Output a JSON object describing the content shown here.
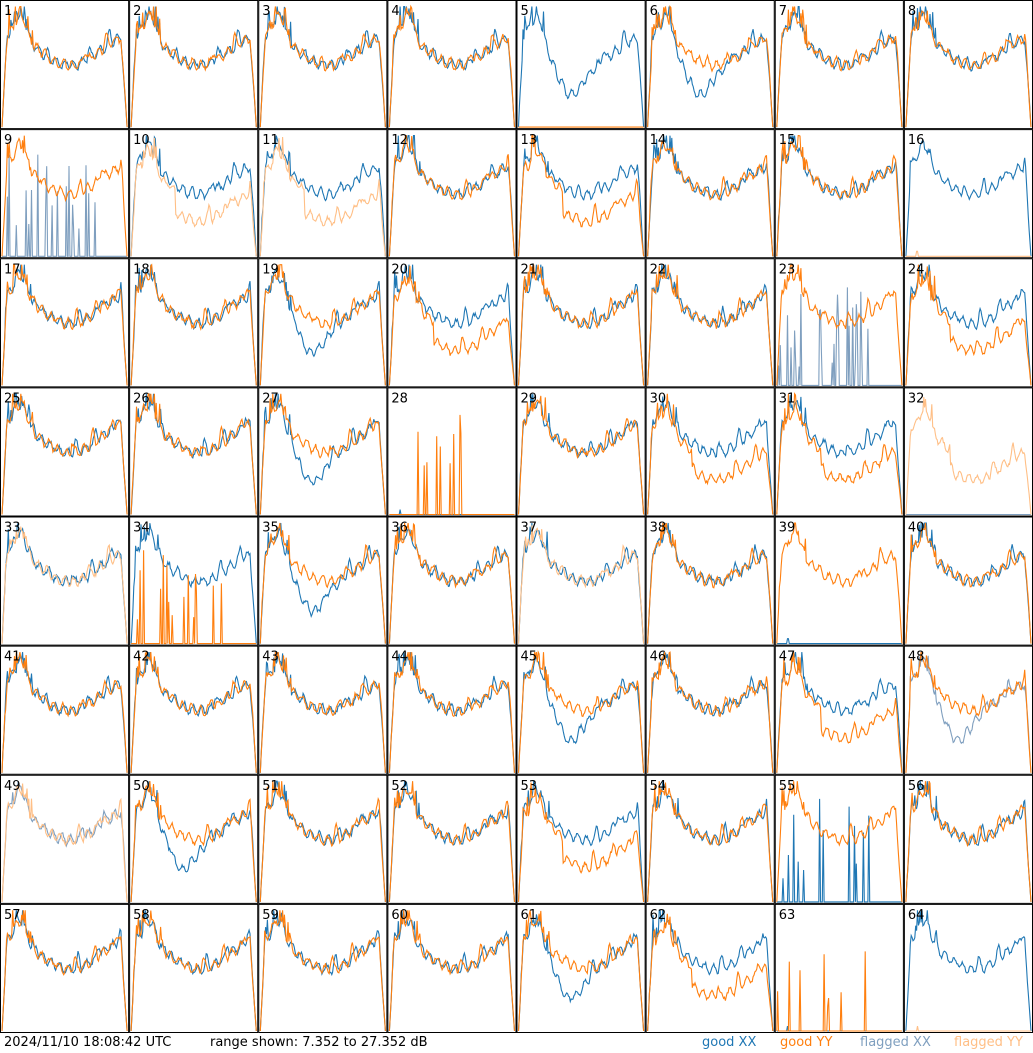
{
  "footer": {
    "timestamp": "2024/11/10 18:08:42 UTC",
    "range_text": "range shown: 7.352 to 27.352 dB"
  },
  "legend": {
    "good_xx": "good XX",
    "good_yy": "good YY",
    "flagged_xx": "flagged XX",
    "flagged_yy": "flagged YY"
  },
  "colors": {
    "good_xx": "#1f77b4",
    "good_yy": "#ff7f0e",
    "flagged_xx": "#7f9fbf",
    "flagged_yy": "#ffbf86"
  },
  "chart_data": {
    "type": "line",
    "title": "",
    "xlabel": "",
    "ylabel": "",
    "ylim": [
      7.352,
      27.352
    ],
    "grid": "8x8 small multiples",
    "series_shapes": [
      "normal",
      "xx_dip",
      "yy_low",
      "dead",
      "spiky"
    ],
    "panels": [
      {
        "id": "1",
        "xx": "normal",
        "yy": "normal",
        "xx_flagged": false,
        "yy_flagged": false
      },
      {
        "id": "2",
        "xx": "normal",
        "yy": "normal",
        "xx_flagged": false,
        "yy_flagged": false
      },
      {
        "id": "3",
        "xx": "normal",
        "yy": "normal",
        "xx_flagged": false,
        "yy_flagged": false
      },
      {
        "id": "4",
        "xx": "normal",
        "yy": "normal",
        "xx_flagged": false,
        "yy_flagged": false
      },
      {
        "id": "5",
        "xx": "xx_dip",
        "yy": "dead",
        "xx_flagged": false,
        "yy_flagged": false
      },
      {
        "id": "6",
        "xx": "xx_dip",
        "yy": "normal",
        "xx_flagged": false,
        "yy_flagged": false
      },
      {
        "id": "7",
        "xx": "normal",
        "yy": "normal",
        "xx_flagged": false,
        "yy_flagged": false
      },
      {
        "id": "8",
        "xx": "normal",
        "yy": "normal",
        "xx_flagged": false,
        "yy_flagged": false
      },
      {
        "id": "9",
        "xx": "spiky",
        "yy": "normal",
        "xx_flagged": true,
        "yy_flagged": false
      },
      {
        "id": "10",
        "xx": "normal",
        "yy": "yy_low",
        "xx_flagged": false,
        "yy_flagged": true
      },
      {
        "id": "11",
        "xx": "normal",
        "yy": "yy_low",
        "xx_flagged": false,
        "yy_flagged": true
      },
      {
        "id": "12",
        "xx": "normal",
        "yy": "normal",
        "xx_flagged": false,
        "yy_flagged": false
      },
      {
        "id": "13",
        "xx": "normal",
        "yy": "yy_low",
        "xx_flagged": false,
        "yy_flagged": false
      },
      {
        "id": "14",
        "xx": "normal",
        "yy": "normal",
        "xx_flagged": false,
        "yy_flagged": false
      },
      {
        "id": "15",
        "xx": "normal",
        "yy": "normal",
        "xx_flagged": false,
        "yy_flagged": false
      },
      {
        "id": "16",
        "xx": "normal",
        "yy": "dead",
        "xx_flagged": false,
        "yy_flagged": true
      },
      {
        "id": "17",
        "xx": "normal",
        "yy": "normal",
        "xx_flagged": false,
        "yy_flagged": false
      },
      {
        "id": "18",
        "xx": "normal",
        "yy": "normal",
        "xx_flagged": false,
        "yy_flagged": false
      },
      {
        "id": "19",
        "xx": "xx_dip",
        "yy": "normal",
        "xx_flagged": false,
        "yy_flagged": false
      },
      {
        "id": "20",
        "xx": "normal",
        "yy": "yy_low",
        "xx_flagged": false,
        "yy_flagged": false
      },
      {
        "id": "21",
        "xx": "normal",
        "yy": "normal",
        "xx_flagged": false,
        "yy_flagged": false
      },
      {
        "id": "22",
        "xx": "normal",
        "yy": "normal",
        "xx_flagged": false,
        "yy_flagged": false
      },
      {
        "id": "23",
        "xx": "spiky",
        "yy": "normal",
        "xx_flagged": true,
        "yy_flagged": false
      },
      {
        "id": "24",
        "xx": "normal",
        "yy": "yy_low",
        "xx_flagged": false,
        "yy_flagged": false
      },
      {
        "id": "25",
        "xx": "normal",
        "yy": "normal",
        "xx_flagged": false,
        "yy_flagged": false
      },
      {
        "id": "26",
        "xx": "normal",
        "yy": "normal",
        "xx_flagged": false,
        "yy_flagged": false
      },
      {
        "id": "27",
        "xx": "xx_dip",
        "yy": "normal",
        "xx_flagged": false,
        "yy_flagged": false
      },
      {
        "id": "28",
        "xx": "dead",
        "yy": "spiky",
        "xx_flagged": false,
        "yy_flagged": false
      },
      {
        "id": "29",
        "xx": "normal",
        "yy": "normal",
        "xx_flagged": false,
        "yy_flagged": false
      },
      {
        "id": "30",
        "xx": "normal",
        "yy": "yy_low",
        "xx_flagged": false,
        "yy_flagged": false
      },
      {
        "id": "31",
        "xx": "normal",
        "yy": "yy_low",
        "xx_flagged": false,
        "yy_flagged": false
      },
      {
        "id": "32",
        "xx": "dead",
        "yy": "yy_low",
        "xx_flagged": true,
        "yy_flagged": true
      },
      {
        "id": "33",
        "xx": "normal",
        "yy": "normal",
        "xx_flagged": false,
        "yy_flagged": true
      },
      {
        "id": "34",
        "xx": "normal",
        "yy": "spiky",
        "xx_flagged": false,
        "yy_flagged": false
      },
      {
        "id": "35",
        "xx": "xx_dip",
        "yy": "normal",
        "xx_flagged": false,
        "yy_flagged": false
      },
      {
        "id": "36",
        "xx": "normal",
        "yy": "normal",
        "xx_flagged": false,
        "yy_flagged": false
      },
      {
        "id": "37",
        "xx": "normal",
        "yy": "normal",
        "xx_flagged": false,
        "yy_flagged": true
      },
      {
        "id": "38",
        "xx": "normal",
        "yy": "normal",
        "xx_flagged": false,
        "yy_flagged": false
      },
      {
        "id": "39",
        "xx": "dead",
        "yy": "normal",
        "xx_flagged": false,
        "yy_flagged": false
      },
      {
        "id": "40",
        "xx": "normal",
        "yy": "normal",
        "xx_flagged": false,
        "yy_flagged": false
      },
      {
        "id": "41",
        "xx": "normal",
        "yy": "normal",
        "xx_flagged": false,
        "yy_flagged": false
      },
      {
        "id": "42",
        "xx": "normal",
        "yy": "normal",
        "xx_flagged": false,
        "yy_flagged": false
      },
      {
        "id": "43",
        "xx": "normal",
        "yy": "normal",
        "xx_flagged": false,
        "yy_flagged": false
      },
      {
        "id": "44",
        "xx": "normal",
        "yy": "normal",
        "xx_flagged": false,
        "yy_flagged": false
      },
      {
        "id": "45",
        "xx": "xx_dip",
        "yy": "normal",
        "xx_flagged": false,
        "yy_flagged": false
      },
      {
        "id": "46",
        "xx": "normal",
        "yy": "normal",
        "xx_flagged": false,
        "yy_flagged": false
      },
      {
        "id": "47",
        "xx": "normal",
        "yy": "yy_low",
        "xx_flagged": false,
        "yy_flagged": false
      },
      {
        "id": "48",
        "xx": "xx_dip",
        "yy": "normal",
        "xx_flagged": true,
        "yy_flagged": false
      },
      {
        "id": "49",
        "xx": "normal",
        "yy": "normal",
        "xx_flagged": true,
        "yy_flagged": true
      },
      {
        "id": "50",
        "xx": "xx_dip",
        "yy": "normal",
        "xx_flagged": false,
        "yy_flagged": false
      },
      {
        "id": "51",
        "xx": "normal",
        "yy": "normal",
        "xx_flagged": false,
        "yy_flagged": false
      },
      {
        "id": "52",
        "xx": "normal",
        "yy": "normal",
        "xx_flagged": false,
        "yy_flagged": false
      },
      {
        "id": "53",
        "xx": "normal",
        "yy": "yy_low",
        "xx_flagged": false,
        "yy_flagged": false
      },
      {
        "id": "54",
        "xx": "normal",
        "yy": "normal",
        "xx_flagged": false,
        "yy_flagged": false
      },
      {
        "id": "55",
        "xx": "spiky",
        "yy": "normal",
        "xx_flagged": false,
        "yy_flagged": false
      },
      {
        "id": "56",
        "xx": "normal",
        "yy": "normal",
        "xx_flagged": false,
        "yy_flagged": false
      },
      {
        "id": "57",
        "xx": "normal",
        "yy": "normal",
        "xx_flagged": false,
        "yy_flagged": false
      },
      {
        "id": "58",
        "xx": "normal",
        "yy": "normal",
        "xx_flagged": false,
        "yy_flagged": false
      },
      {
        "id": "59",
        "xx": "normal",
        "yy": "normal",
        "xx_flagged": false,
        "yy_flagged": false
      },
      {
        "id": "60",
        "xx": "normal",
        "yy": "normal",
        "xx_flagged": false,
        "yy_flagged": false
      },
      {
        "id": "61",
        "xx": "xx_dip",
        "yy": "normal",
        "xx_flagged": false,
        "yy_flagged": false
      },
      {
        "id": "62",
        "xx": "normal",
        "yy": "yy_low",
        "xx_flagged": false,
        "yy_flagged": false
      },
      {
        "id": "63",
        "xx": "dead",
        "yy": "spiky",
        "xx_flagged": false,
        "yy_flagged": false
      },
      {
        "id": "64",
        "xx": "normal",
        "yy": "dead",
        "xx_flagged": false,
        "yy_flagged": true
      }
    ]
  }
}
